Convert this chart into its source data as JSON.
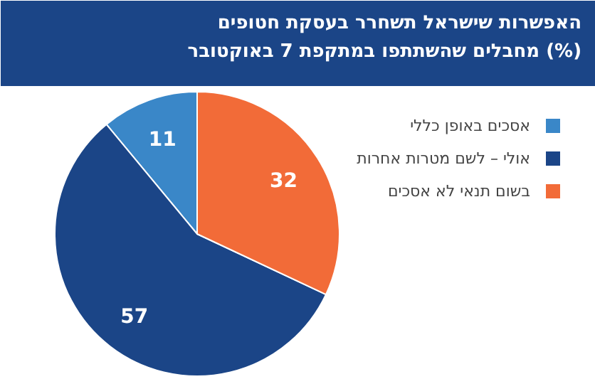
{
  "chart_data": {
    "type": "pie",
    "title": "האפשרות שישראל תשחרר בעסקת חטופים\nמחבלים שהשתתפו במתקפת 7 באוקטובר (%)",
    "categories": [
      "אסכים באופן כללי",
      "אולי – לשם מטרות אחרות",
      "בשום תנאי לא אסכים"
    ],
    "values": [
      11,
      57,
      32
    ],
    "colors": [
      "#3a87c8",
      "#1b4587",
      "#f26b38"
    ],
    "data_labels": true,
    "legend": "right"
  }
}
